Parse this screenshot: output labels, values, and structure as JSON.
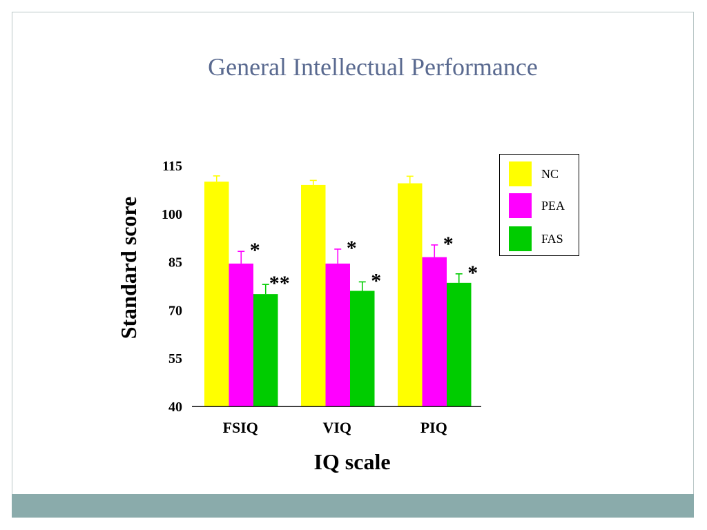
{
  "slide": {
    "title": "General Intellectual Performance"
  },
  "chart_data": {
    "type": "bar",
    "xlabel": "IQ scale",
    "ylabel": "Standard score",
    "ylim": [
      40,
      115
    ],
    "yticks": [
      40,
      55,
      70,
      85,
      100,
      115
    ],
    "categories": [
      "FSIQ",
      "VIQ",
      "PIQ"
    ],
    "series": [
      {
        "name": "NC",
        "color": "#ffff00",
        "values": [
          110,
          109,
          109.5
        ],
        "errors": [
          1.8,
          1.4,
          2.2
        ]
      },
      {
        "name": "PEA",
        "color": "#ff00ff",
        "values": [
          84.5,
          84.5,
          86.5
        ],
        "errors": [
          3.8,
          4.5,
          3.8
        ]
      },
      {
        "name": "FAS",
        "color": "#00cc00",
        "values": [
          75,
          76,
          78.5
        ],
        "errors": [
          3.0,
          2.8,
          2.8
        ]
      }
    ],
    "annotations": [
      {
        "category": 0,
        "series": 1,
        "text": "*"
      },
      {
        "category": 0,
        "series": 2,
        "text": "**"
      },
      {
        "category": 1,
        "series": 1,
        "text": "*"
      },
      {
        "category": 1,
        "series": 2,
        "text": "*"
      },
      {
        "category": 2,
        "series": 1,
        "text": "*"
      },
      {
        "category": 2,
        "series": 2,
        "text": "*"
      }
    ],
    "legend": "right"
  }
}
